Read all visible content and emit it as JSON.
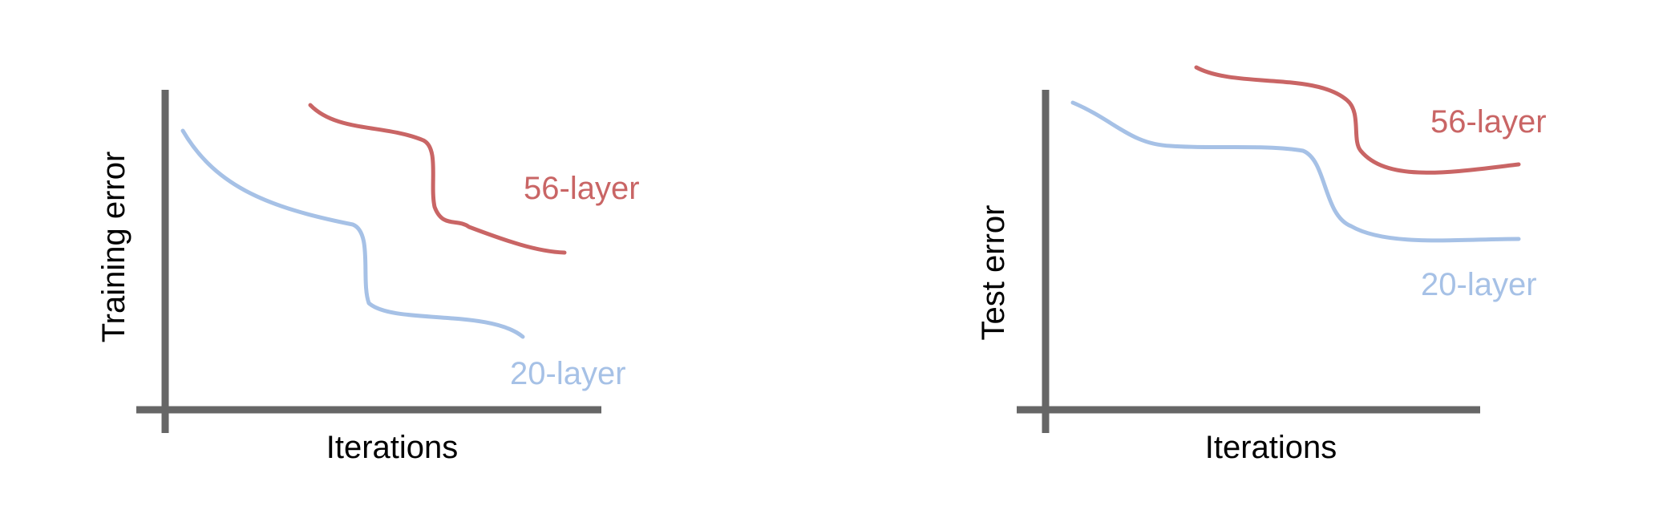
{
  "colors": {
    "axis": "#666666",
    "layer56": "#c96565",
    "layer20": "#a6c1e6",
    "text": "#000000"
  },
  "panels": [
    {
      "ylabel": "Training error",
      "xlabel": "Iterations",
      "series": [
        {
          "name": "56-layer",
          "color": "#c96565"
        },
        {
          "name": "20-layer",
          "color": "#a6c1e6"
        }
      ]
    },
    {
      "ylabel": "Test error",
      "xlabel": "Iterations",
      "series": [
        {
          "name": "56-layer",
          "color": "#c96565"
        },
        {
          "name": "20-layer",
          "color": "#a6c1e6"
        }
      ]
    }
  ]
}
